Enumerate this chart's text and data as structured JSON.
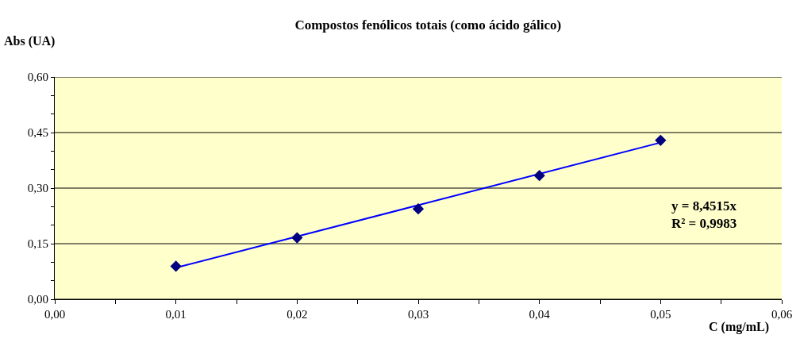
{
  "chart_data": {
    "type": "scatter",
    "title": "Compostos fenólicos totais (como ácido gálico)",
    "xlabel": "C (mg/mL)",
    "ylabel": "Abs (UA)",
    "x": [
      0.01,
      0.02,
      0.03,
      0.04,
      0.05
    ],
    "series": [
      {
        "color": "#000080",
        "values": [
          0.089,
          0.166,
          0.244,
          0.334,
          0.429
        ],
        "marker": "diamond"
      },
      {
        "type": "line",
        "color": "#0000ff",
        "x": [
          0.01,
          0.05
        ],
        "values": [
          0.085,
          0.423
        ],
        "marker": "none",
        "line_style": "solid"
      }
    ],
    "xlim": [
      0,
      0.06
    ],
    "xticks": [
      {
        "value": 0,
        "label": "0,00"
      },
      {
        "value": 0.005,
        "label": null
      },
      {
        "value": 0.01,
        "label": "0,01"
      },
      {
        "value": 0.015,
        "label": null
      },
      {
        "value": 0.02,
        "label": "0,02"
      },
      {
        "value": 0.025,
        "label": null
      },
      {
        "value": 0.03,
        "label": "0,03"
      },
      {
        "value": 0.035,
        "label": null
      },
      {
        "value": 0.04,
        "label": "0,04"
      },
      {
        "value": 0.045,
        "label": null
      },
      {
        "value": 0.05,
        "label": "0,05"
      },
      {
        "value": 0.055,
        "label": null
      },
      {
        "value": 0.06,
        "label": "0,06"
      }
    ],
    "ylim": [
      0,
      0.6
    ],
    "yticks": [
      {
        "value": 0,
        "label": "0,00"
      },
      {
        "value": 0.05,
        "label": null
      },
      {
        "value": 0.1,
        "label": null
      },
      {
        "value": 0.15,
        "label": "0,15"
      },
      {
        "value": 0.2,
        "label": null
      },
      {
        "value": 0.25,
        "label": null
      },
      {
        "value": 0.3,
        "label": "0,30"
      },
      {
        "value": 0.35,
        "label": null
      },
      {
        "value": 0.4,
        "label": null
      },
      {
        "value": 0.45,
        "label": "0,45"
      },
      {
        "value": 0.5,
        "label": null
      },
      {
        "value": 0.55,
        "label": null
      },
      {
        "value": 0.6,
        "label": "0,60"
      }
    ],
    "grid": "y",
    "annotations": [
      "y = 8,4515x\nR² = 0,9983"
    ]
  }
}
